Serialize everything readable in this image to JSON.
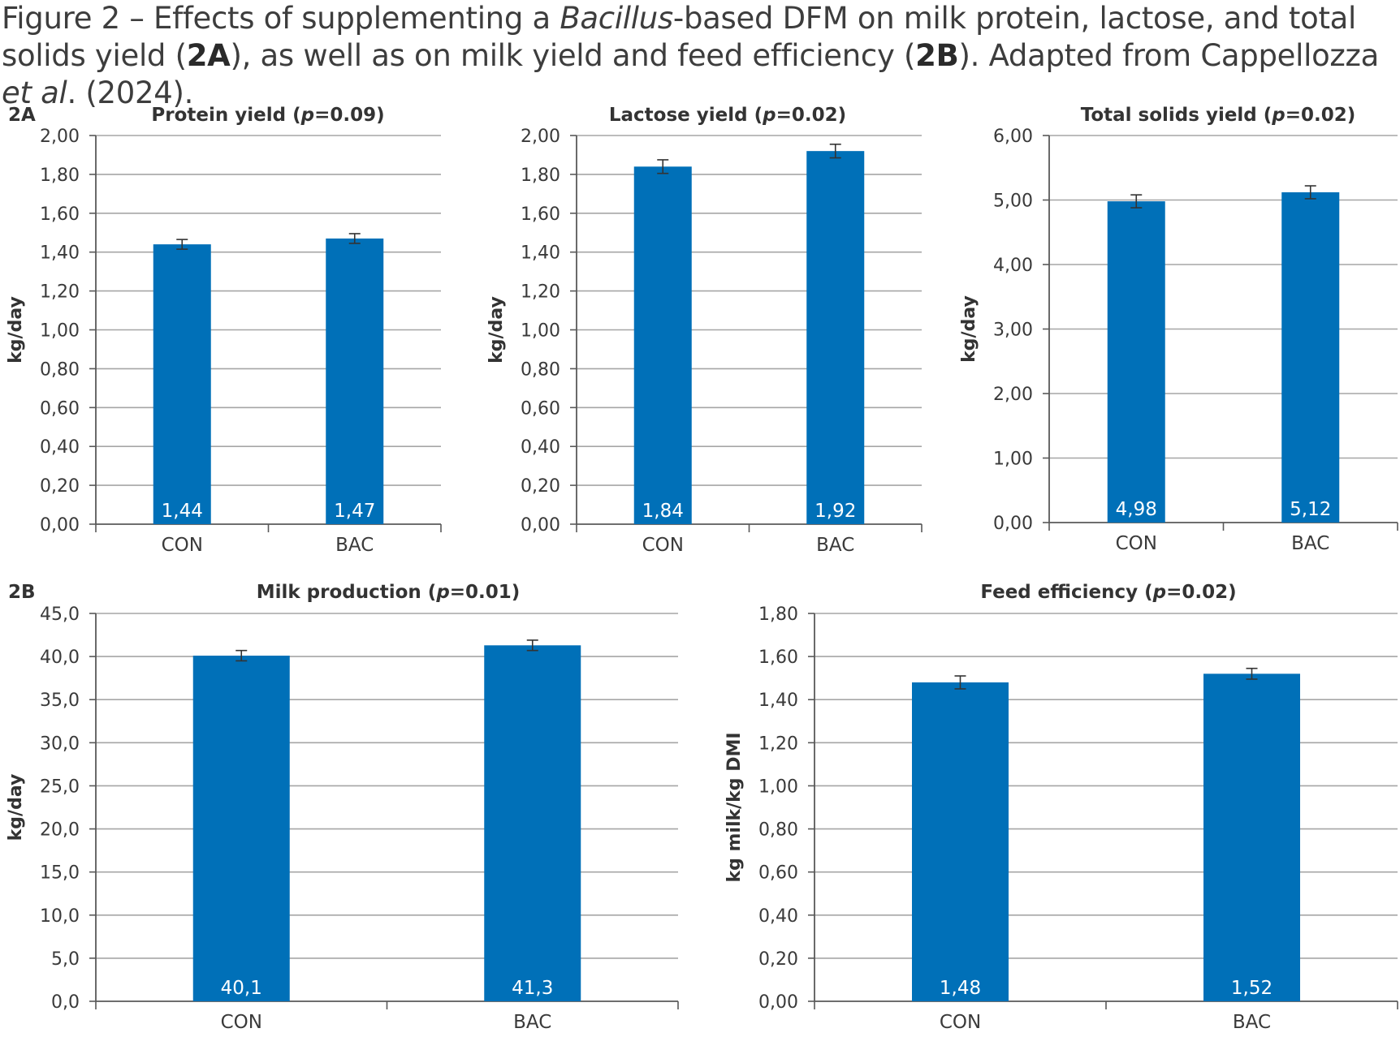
{
  "caption": {
    "seg1": "Figure 2 – Effects of supplementing a ",
    "seg2": "Bacillus",
    "seg3": "-based DFM on milk protein, lactose, and total solids yield (",
    "seg4": "2A",
    "seg5": "), as well as on milk yield and feed efficiency (",
    "seg6": "2B",
    "seg7": "). Adapted from Cappellozza ",
    "seg8": "et al",
    "seg9": ". (2024)."
  },
  "panels": {
    "a_label": "2A",
    "b_label": "2B"
  },
  "colors": {
    "bar": "#0070b8",
    "grid": "#a6a6a6",
    "axis": "#595959",
    "text": "#3a3a3a"
  },
  "chart_data": [
    {
      "type": "bar",
      "title_pre": "Protein yield (",
      "title_p": "p",
      "title_post": "=0.09)",
      "ylabel": "kg/day",
      "categories": [
        "CON",
        "BAC"
      ],
      "values": [
        1.44,
        1.47
      ],
      "value_labels": [
        "1,44",
        "1,47"
      ],
      "errors": [
        0.025,
        0.025
      ],
      "ylim": [
        0,
        2
      ],
      "yticks": [
        "0,00",
        "0,20",
        "0,40",
        "0,60",
        "0,80",
        "1,00",
        "1,20",
        "1,40",
        "1,60",
        "1,80",
        "2,00"
      ],
      "grid": true
    },
    {
      "type": "bar",
      "title_pre": "Lactose yield (",
      "title_p": "p",
      "title_post": "=0.02)",
      "ylabel": "kg/day",
      "categories": [
        "CON",
        "BAC"
      ],
      "values": [
        1.84,
        1.92
      ],
      "value_labels": [
        "1,84",
        "1,92"
      ],
      "errors": [
        0.035,
        0.035
      ],
      "ylim": [
        0,
        2
      ],
      "yticks": [
        "0,00",
        "0,20",
        "0,40",
        "0,60",
        "0,80",
        "1,00",
        "1,20",
        "1,40",
        "1,60",
        "1,80",
        "2,00"
      ],
      "grid": true
    },
    {
      "type": "bar",
      "title_pre": "Total solids yield (",
      "title_p": "p",
      "title_post": "=0.02)",
      "ylabel": "kg/day",
      "categories": [
        "CON",
        "BAC"
      ],
      "values": [
        4.98,
        5.12
      ],
      "value_labels": [
        "4,98",
        "5,12"
      ],
      "errors": [
        0.1,
        0.1
      ],
      "ylim": [
        0,
        6
      ],
      "yticks": [
        "0,00",
        "1,00",
        "2,00",
        "3,00",
        "4,00",
        "5,00",
        "6,00"
      ],
      "grid": true
    },
    {
      "type": "bar",
      "title_pre": "Milk production (",
      "title_p": "p",
      "title_post": "=0.01)",
      "ylabel": "kg/day",
      "categories": [
        "CON",
        "BAC"
      ],
      "values": [
        40.1,
        41.3
      ],
      "value_labels": [
        "40,1",
        "41,3"
      ],
      "errors": [
        0.6,
        0.6
      ],
      "ylim": [
        0,
        45
      ],
      "yticks": [
        "0,0",
        "5,0",
        "10,0",
        "15,0",
        "20,0",
        "25,0",
        "30,0",
        "35,0",
        "40,0",
        "45,0"
      ],
      "grid": true
    },
    {
      "type": "bar",
      "title_pre": "Feed efficiency (",
      "title_p": "p",
      "title_post": "=0.02)",
      "ylabel": "kg milk/kg DMI",
      "categories": [
        "CON",
        "BAC"
      ],
      "values": [
        1.48,
        1.52
      ],
      "value_labels": [
        "1,48",
        "1,52"
      ],
      "errors": [
        0.03,
        0.025
      ],
      "ylim": [
        0,
        1.8
      ],
      "yticks": [
        "0,00",
        "0,20",
        "0,40",
        "0,60",
        "0,80",
        "1,00",
        "1,20",
        "1,40",
        "1,60",
        "1,80"
      ],
      "grid": true
    }
  ]
}
